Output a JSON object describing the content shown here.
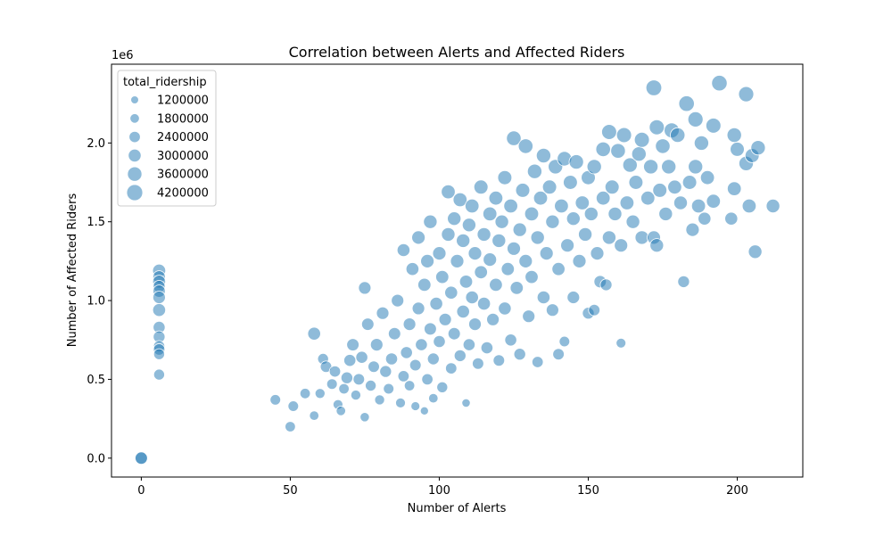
{
  "chart_data": {
    "type": "scatter",
    "title": "Correlation between Alerts and Affected Riders",
    "xlabel": "Number of Alerts",
    "ylabel": "Number of Affected Riders",
    "y_offset_label": "1e6",
    "xlim": [
      -10,
      222
    ],
    "ylim": [
      -0.12,
      2.5
    ],
    "x_ticks": [
      0,
      50,
      100,
      150,
      200
    ],
    "y_ticks": [
      0.0,
      0.5,
      1.0,
      1.5,
      2.0
    ],
    "y_tick_labels": [
      "0.0",
      "0.5",
      "1.0",
      "1.5",
      "2.0"
    ],
    "grid": false,
    "color": "#1f77b4",
    "legend": {
      "title": "total_ridership",
      "placement": "upper left",
      "entries": [
        "1200000",
        "1800000",
        "2400000",
        "3000000",
        "3600000",
        "4200000"
      ],
      "size_values": [
        1200000,
        1800000,
        2400000,
        3000000,
        3600000,
        4200000
      ]
    },
    "size_variable": "total_ridership",
    "points": [
      [
        0,
        0.0,
        3200000
      ],
      [
        0,
        0.0,
        2800000
      ],
      [
        6,
        1.19,
        3100000
      ],
      [
        6,
        1.15,
        2900000
      ],
      [
        6,
        1.12,
        3000000
      ],
      [
        6,
        1.09,
        2700000
      ],
      [
        6,
        1.06,
        2800000
      ],
      [
        6,
        1.02,
        2900000
      ],
      [
        6,
        0.94,
        3000000
      ],
      [
        6,
        0.83,
        2700000
      ],
      [
        6,
        0.77,
        2600000
      ],
      [
        6,
        0.71,
        2400000
      ],
      [
        6,
        0.69,
        2500000
      ],
      [
        6,
        0.66,
        2300000
      ],
      [
        6,
        0.53,
        2300000
      ],
      [
        45,
        0.37,
        2200000
      ],
      [
        50,
        0.2,
        2100000
      ],
      [
        51,
        0.33,
        2200000
      ],
      [
        55,
        0.41,
        2100000
      ],
      [
        58,
        0.27,
        1800000
      ],
      [
        58,
        0.79,
        3000000
      ],
      [
        60,
        0.41,
        2000000
      ],
      [
        61,
        0.63,
        2300000
      ],
      [
        62,
        0.58,
        2500000
      ],
      [
        64,
        0.47,
        2200000
      ],
      [
        65,
        0.55,
        2400000
      ],
      [
        66,
        0.34,
        1900000
      ],
      [
        67,
        0.3,
        1800000
      ],
      [
        68,
        0.44,
        2100000
      ],
      [
        69,
        0.51,
        2600000
      ],
      [
        70,
        0.62,
        2700000
      ],
      [
        71,
        0.72,
        2800000
      ],
      [
        72,
        0.4,
        2000000
      ],
      [
        73,
        0.5,
        2500000
      ],
      [
        74,
        0.64,
        2700000
      ],
      [
        75,
        0.26,
        1700000
      ],
      [
        75,
        1.08,
        2900000
      ],
      [
        76,
        0.85,
        2800000
      ],
      [
        77,
        0.46,
        2300000
      ],
      [
        78,
        0.58,
        2500000
      ],
      [
        79,
        0.72,
        2900000
      ],
      [
        80,
        0.37,
        2000000
      ],
      [
        81,
        0.92,
        2900000
      ],
      [
        82,
        0.55,
        2600000
      ],
      [
        83,
        0.44,
        2200000
      ],
      [
        84,
        0.63,
        2700000
      ],
      [
        85,
        0.79,
        2800000
      ],
      [
        86,
        1.0,
        2900000
      ],
      [
        87,
        0.35,
        1900000
      ],
      [
        88,
        0.52,
        2400000
      ],
      [
        88,
        1.32,
        3000000
      ],
      [
        89,
        0.67,
        2700000
      ],
      [
        90,
        0.85,
        2900000
      ],
      [
        90,
        0.46,
        2100000
      ],
      [
        91,
        1.2,
        3000000
      ],
      [
        92,
        0.33,
        1600000
      ],
      [
        92,
        0.59,
        2500000
      ],
      [
        93,
        1.4,
        3200000
      ],
      [
        93,
        0.95,
        2900000
      ],
      [
        94,
        0.72,
        2700000
      ],
      [
        95,
        0.3,
        1300000
      ],
      [
        95,
        1.1,
        3100000
      ],
      [
        96,
        0.5,
        2400000
      ],
      [
        96,
        1.25,
        3200000
      ],
      [
        97,
        0.82,
        2800000
      ],
      [
        97,
        1.5,
        3300000
      ],
      [
        98,
        0.38,
        1800000
      ],
      [
        98,
        0.63,
        2600000
      ],
      [
        99,
        0.98,
        3000000
      ],
      [
        100,
        1.3,
        3200000
      ],
      [
        100,
        0.74,
        2700000
      ],
      [
        101,
        1.15,
        3100000
      ],
      [
        101,
        0.45,
        2300000
      ],
      [
        102,
        0.88,
        2900000
      ],
      [
        103,
        1.42,
        3300000
      ],
      [
        103,
        1.69,
        3400000
      ],
      [
        104,
        0.57,
        2400000
      ],
      [
        104,
        1.05,
        3000000
      ],
      [
        105,
        1.52,
        3300000
      ],
      [
        105,
        0.79,
        2800000
      ],
      [
        106,
        1.25,
        3200000
      ],
      [
        107,
        0.65,
        2600000
      ],
      [
        107,
        1.64,
        3400000
      ],
      [
        108,
        0.93,
        3000000
      ],
      [
        108,
        1.38,
        3300000
      ],
      [
        109,
        0.35,
        1400000
      ],
      [
        109,
        1.12,
        3100000
      ],
      [
        110,
        0.72,
        2700000
      ],
      [
        110,
        1.48,
        3300000
      ],
      [
        111,
        1.02,
        3000000
      ],
      [
        111,
        1.6,
        3400000
      ],
      [
        112,
        0.85,
        2900000
      ],
      [
        112,
        1.3,
        3200000
      ],
      [
        113,
        0.6,
        2500000
      ],
      [
        114,
        1.18,
        3100000
      ],
      [
        114,
        1.72,
        3500000
      ],
      [
        115,
        0.98,
        3000000
      ],
      [
        115,
        1.42,
        3300000
      ],
      [
        116,
        0.7,
        2700000
      ],
      [
        117,
        1.55,
        3400000
      ],
      [
        117,
        1.26,
        3200000
      ],
      [
        118,
        0.88,
        2900000
      ],
      [
        119,
        1.1,
        3100000
      ],
      [
        119,
        1.65,
        3400000
      ],
      [
        120,
        0.62,
        2500000
      ],
      [
        120,
        1.38,
        3300000
      ],
      [
        121,
        1.5,
        3300000
      ],
      [
        122,
        0.95,
        3000000
      ],
      [
        122,
        1.78,
        3500000
      ],
      [
        123,
        1.2,
        3100000
      ],
      [
        124,
        0.75,
        2700000
      ],
      [
        124,
        1.6,
        3400000
      ],
      [
        125,
        2.03,
        3700000
      ],
      [
        125,
        1.33,
        3200000
      ],
      [
        126,
        1.08,
        3100000
      ],
      [
        127,
        1.45,
        3300000
      ],
      [
        127,
        0.66,
        2600000
      ],
      [
        128,
        1.7,
        3500000
      ],
      [
        129,
        1.25,
        3200000
      ],
      [
        129,
        1.98,
        3700000
      ],
      [
        130,
        0.9,
        2900000
      ],
      [
        131,
        1.55,
        3400000
      ],
      [
        131,
        1.15,
        3100000
      ],
      [
        132,
        1.82,
        3600000
      ],
      [
        133,
        0.61,
        2400000
      ],
      [
        133,
        1.4,
        3300000
      ],
      [
        134,
        1.65,
        3400000
      ],
      [
        135,
        1.02,
        3000000
      ],
      [
        135,
        1.92,
        3600000
      ],
      [
        136,
        1.3,
        3200000
      ],
      [
        137,
        1.72,
        3500000
      ],
      [
        138,
        0.94,
        2900000
      ],
      [
        138,
        1.5,
        3300000
      ],
      [
        139,
        1.85,
        3600000
      ],
      [
        140,
        1.2,
        3100000
      ],
      [
        140,
        0.66,
        2500000
      ],
      [
        141,
        1.6,
        3400000
      ],
      [
        142,
        1.9,
        3600000
      ],
      [
        142,
        0.74,
        2200000
      ],
      [
        143,
        1.35,
        3200000
      ],
      [
        144,
        1.75,
        3500000
      ],
      [
        145,
        1.02,
        2900000
      ],
      [
        145,
        1.52,
        3300000
      ],
      [
        146,
        1.88,
        3600000
      ],
      [
        147,
        1.25,
        3200000
      ],
      [
        148,
        1.62,
        3400000
      ],
      [
        149,
        1.42,
        3300000
      ],
      [
        150,
        1.78,
        3500000
      ],
      [
        150,
        0.92,
        2600000
      ],
      [
        151,
        1.55,
        3300000
      ],
      [
        152,
        0.94,
        2500000
      ],
      [
        152,
        1.85,
        3600000
      ],
      [
        153,
        1.3,
        3200000
      ],
      [
        154,
        1.12,
        2800000
      ],
      [
        155,
        1.96,
        3700000
      ],
      [
        155,
        1.65,
        3400000
      ],
      [
        156,
        1.1,
        2600000
      ],
      [
        157,
        2.07,
        3800000
      ],
      [
        157,
        1.4,
        3300000
      ],
      [
        158,
        1.72,
        3500000
      ],
      [
        159,
        1.55,
        3300000
      ],
      [
        160,
        1.95,
        3700000
      ],
      [
        161,
        0.73,
        1900000
      ],
      [
        161,
        1.35,
        3200000
      ],
      [
        162,
        2.05,
        3800000
      ],
      [
        163,
        1.62,
        3400000
      ],
      [
        164,
        1.86,
        3600000
      ],
      [
        165,
        1.5,
        3300000
      ],
      [
        166,
        1.75,
        3500000
      ],
      [
        167,
        1.93,
        3600000
      ],
      [
        168,
        1.4,
        3300000
      ],
      [
        168,
        2.02,
        3800000
      ],
      [
        170,
        1.65,
        3400000
      ],
      [
        171,
        1.85,
        3600000
      ],
      [
        172,
        2.35,
        4100000
      ],
      [
        172,
        1.4,
        3200000
      ],
      [
        173,
        1.35,
        3300000
      ],
      [
        173,
        2.1,
        3800000
      ],
      [
        174,
        1.7,
        3500000
      ],
      [
        175,
        1.98,
        3700000
      ],
      [
        176,
        1.55,
        3300000
      ],
      [
        177,
        1.85,
        3600000
      ],
      [
        178,
        2.08,
        3800000
      ],
      [
        179,
        1.72,
        3400000
      ],
      [
        180,
        2.05,
        3700000
      ],
      [
        181,
        1.62,
        3300000
      ],
      [
        182,
        1.12,
        2600000
      ],
      [
        183,
        2.25,
        4000000
      ],
      [
        184,
        1.75,
        3500000
      ],
      [
        185,
        1.45,
        3200000
      ],
      [
        186,
        2.15,
        3900000
      ],
      [
        186,
        1.85,
        3600000
      ],
      [
        187,
        1.6,
        3400000
      ],
      [
        188,
        2.0,
        3600000
      ],
      [
        189,
        1.52,
        3000000
      ],
      [
        190,
        1.78,
        3400000
      ],
      [
        192,
        2.11,
        3800000
      ],
      [
        192,
        1.63,
        3400000
      ],
      [
        194,
        2.38,
        4000000
      ],
      [
        198,
        1.52,
        3000000
      ],
      [
        199,
        2.05,
        3600000
      ],
      [
        199,
        1.71,
        3400000
      ],
      [
        200,
        1.96,
        3500000
      ],
      [
        203,
        1.87,
        3600000
      ],
      [
        203,
        2.31,
        3900000
      ],
      [
        204,
        1.6,
        3400000
      ],
      [
        205,
        1.92,
        3500000
      ],
      [
        206,
        1.31,
        3300000
      ],
      [
        207,
        1.97,
        3600000
      ],
      [
        212,
        1.6,
        3300000
      ]
    ]
  }
}
